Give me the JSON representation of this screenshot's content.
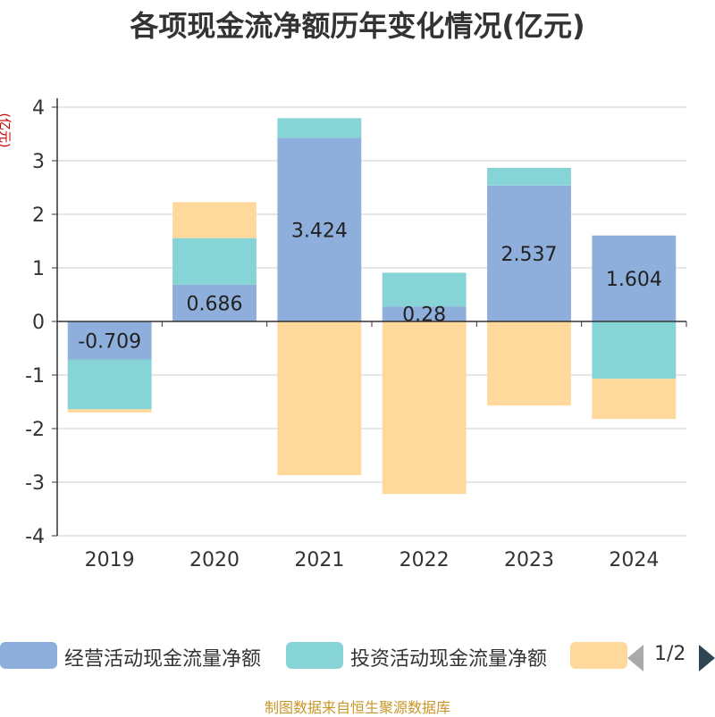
{
  "chart_data": {
    "type": "bar",
    "stacked": true,
    "title": "各项现金流净额历年变化情况(亿元)",
    "ylabel": "(亿元)",
    "categories": [
      "2019",
      "2020",
      "2021",
      "2022",
      "2023",
      "2024"
    ],
    "ylim": [
      -4,
      4
    ],
    "yticks": [
      4,
      3,
      2,
      1,
      0,
      -1,
      -2,
      -3,
      -4
    ],
    "grid": true,
    "series": [
      {
        "name": "经营活动现金流量净额",
        "color": "#8eaedb",
        "values": [
          -0.709,
          0.686,
          3.424,
          0.28,
          2.537,
          1.604
        ],
        "show_labels": true
      },
      {
        "name": "投资活动现金流量净额",
        "color": "#87d4d7",
        "values": [
          -0.93,
          0.87,
          0.37,
          0.63,
          0.33,
          -1.07
        ]
      },
      {
        "name": "",
        "color": "#fed99b",
        "values": [
          -0.06,
          0.67,
          -2.87,
          -3.22,
          -1.57,
          -0.75
        ]
      }
    ]
  },
  "legend": {
    "page_info": "1/2"
  },
  "source_note": "制图数据来自恒生聚源数据库"
}
